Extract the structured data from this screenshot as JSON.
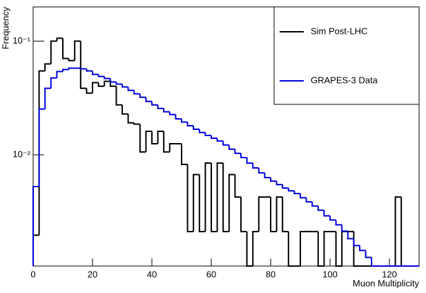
{
  "chart_data": {
    "type": "histogram",
    "x_label": "Muon Multiplicity",
    "y_label": "Frequency",
    "log_y": true,
    "legend": "upper right",
    "xlim": [
      0,
      130
    ],
    "xticks": [
      0,
      20,
      40,
      60,
      80,
      100,
      120
    ],
    "ylim": [
      0.00105,
      0.2
    ],
    "yticks": [
      {
        "value": 0.01,
        "label": "10⁻²"
      },
      {
        "value": 0.1,
        "label": "10⁻¹"
      }
    ],
    "bins": [
      0,
      2,
      4,
      6,
      8,
      10,
      12,
      14,
      16,
      18,
      20,
      22,
      24,
      26,
      28,
      30,
      32,
      34,
      36,
      38,
      40,
      42,
      44,
      46,
      48,
      50,
      52,
      54,
      56,
      58,
      60,
      62,
      64,
      66,
      68,
      70,
      72,
      74,
      76,
      78,
      80,
      82,
      84,
      86,
      88,
      90,
      92,
      94,
      96,
      98,
      100,
      102,
      104,
      106,
      108,
      110,
      112,
      114,
      116,
      118,
      120,
      122,
      124,
      126,
      128,
      130
    ],
    "series": [
      {
        "name": "Sim Post-LHC",
        "color": "#000000",
        "values": [
          0.00196,
          0.0547,
          0.063,
          0.1,
          0.106,
          0.0704,
          0.0675,
          0.1,
          0.0385,
          0.0349,
          0.0431,
          0.0401,
          0.0443,
          0.0401,
          0.0275,
          0.0229,
          0.0191,
          0.0186,
          0.0106,
          0.0161,
          0.0125,
          0.0161,
          0.0106,
          0.0125,
          0.0125,
          0.00823,
          0.00211,
          0.0067,
          0.00211,
          0.00845,
          0.00211,
          0.00845,
          0.00211,
          0.0067,
          0.00425,
          0.00211,
          0,
          0.00211,
          0.00425,
          0.00425,
          0.00211,
          0.00425,
          0.00211,
          0,
          0,
          0.00211,
          0.00211,
          0.00211,
          0,
          0.00211,
          0.00211,
          0,
          0.00211,
          0.00211,
          0,
          0,
          0,
          0,
          0,
          0,
          0,
          0.00425,
          0,
          0,
          0
        ]
      },
      {
        "name": "GRAPES-3 Data",
        "color": "#0000dd",
        "values": [
          0.00525,
          0.0253,
          0.0385,
          0.0475,
          0.054,
          0.0562,
          0.0578,
          0.0578,
          0.057,
          0.0547,
          0.051,
          0.0489,
          0.0469,
          0.0437,
          0.0419,
          0.0396,
          0.0369,
          0.0344,
          0.0321,
          0.0295,
          0.0275,
          0.0256,
          0.0239,
          0.0226,
          0.0207,
          0.0194,
          0.018,
          0.0168,
          0.0157,
          0.0148,
          0.014,
          0.0132,
          0.0122,
          0.0112,
          0.0103,
          0.00946,
          0.00845,
          0.00766,
          0.00694,
          0.0063,
          0.00586,
          0.00547,
          0.0051,
          0.00482,
          0.00456,
          0.00419,
          0.00385,
          0.00354,
          0.00325,
          0.0029,
          0.00267,
          0.00242,
          0.00213,
          0.00183,
          0.00159,
          0.00144,
          0.00125,
          0,
          0,
          0,
          0,
          0,
          0,
          0,
          0
        ]
      }
    ]
  }
}
